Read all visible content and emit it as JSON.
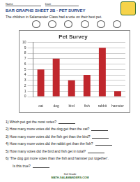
{
  "header": {
    "fields": [
      "Name",
      "Date"
    ],
    "title": "BAR GRAPHS SHEET 2B - PET SURVEY",
    "intro": "The children in Salamander Class had a vote on their best pet."
  },
  "chart_data": {
    "type": "bar",
    "title": "Pet Survey",
    "categories": [
      "cat",
      "dog",
      "bird",
      "fish",
      "rabbit",
      "hamster"
    ],
    "values": [
      5,
      7,
      3,
      4,
      9,
      1
    ],
    "color": "#c0272d",
    "ylim": [
      0,
      10
    ],
    "yticks": [
      0,
      1,
      2,
      3,
      4,
      5,
      6,
      7,
      8,
      9,
      10
    ],
    "grid": true
  },
  "questions": [
    [
      "1) Which pet got the most votes?"
    ],
    [
      "2) How many more votes did the dog get than the cat?"
    ],
    [
      "3) How many more votes did the fish get than the bird?"
    ],
    [
      "4) How many more votes did the rabbit get than the fish?"
    ],
    [
      "5) How many votes did the bird and fish get in total?"
    ],
    [
      "6) 'The dog got more votes than the fish and hamster put together'.",
      "Is this true?"
    ]
  ],
  "footer": [
    "3rd Grade",
    "MATH-SALAMANDERS.COM"
  ]
}
